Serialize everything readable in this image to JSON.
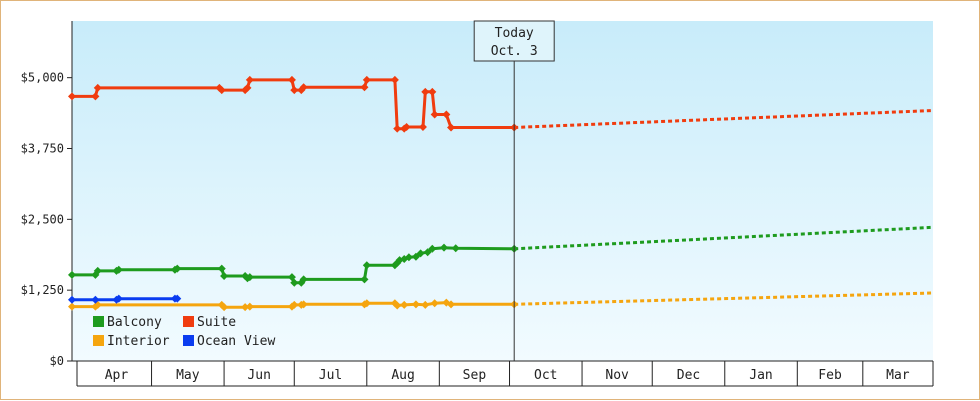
{
  "chart_data": {
    "type": "line",
    "title": "",
    "xlabel": "",
    "ylabel": "",
    "ylim": [
      0,
      6000
    ],
    "xlim": [
      "2024-03-28",
      "2025-03-31"
    ],
    "y_ticks": [
      {
        "value": 0,
        "label": "$0"
      },
      {
        "value": 1250,
        "label": "$1,250"
      },
      {
        "value": 2500,
        "label": "$2,500"
      },
      {
        "value": 3750,
        "label": "$3,750"
      },
      {
        "value": 5000,
        "label": "$5,000"
      }
    ],
    "x_months": [
      {
        "label": "Apr",
        "start": "2024-04-01",
        "end": "2024-05-01"
      },
      {
        "label": "May",
        "start": "2024-05-01",
        "end": "2024-06-01"
      },
      {
        "label": "Jun",
        "start": "2024-06-01",
        "end": "2024-07-01"
      },
      {
        "label": "Jul",
        "start": "2024-07-01",
        "end": "2024-08-01"
      },
      {
        "label": "Aug",
        "start": "2024-08-01",
        "end": "2024-09-01"
      },
      {
        "label": "Sep",
        "start": "2024-09-01",
        "end": "2024-10-01"
      },
      {
        "label": "Oct",
        "start": "2024-10-01",
        "end": "2024-11-01"
      },
      {
        "label": "Nov",
        "start": "2024-11-01",
        "end": "2024-12-01"
      },
      {
        "label": "Dec",
        "start": "2024-12-01",
        "end": "2025-01-01"
      },
      {
        "label": "Jan",
        "start": "2025-01-01",
        "end": "2025-02-01"
      },
      {
        "label": "Feb",
        "start": "2025-02-01",
        "end": "2025-03-01"
      },
      {
        "label": "Mar",
        "start": "2025-03-01",
        "end": "2025-04-01"
      }
    ],
    "today": {
      "label_line1": "Today",
      "label_line2": "Oct. 3",
      "date": "2024-10-03"
    },
    "legend": {
      "placement": "bottom-left",
      "entries": [
        "Balcony",
        "Suite",
        "Interior",
        "Ocean View"
      ]
    },
    "grid": false,
    "series": [
      {
        "name": "Suite",
        "color": "#f03c0f",
        "points": [
          [
            "2024-03-28",
            4670
          ],
          [
            "2024-04-07",
            4670
          ],
          [
            "2024-04-08",
            4820
          ],
          [
            "2024-05-30",
            4820
          ],
          [
            "2024-05-31",
            4780
          ],
          [
            "2024-06-10",
            4780
          ],
          [
            "2024-06-11",
            4820
          ],
          [
            "2024-06-12",
            4960
          ],
          [
            "2024-06-30",
            4960
          ],
          [
            "2024-07-01",
            4780
          ],
          [
            "2024-07-04",
            4780
          ],
          [
            "2024-07-05",
            4830
          ],
          [
            "2024-07-31",
            4830
          ],
          [
            "2024-08-01",
            4960
          ],
          [
            "2024-08-13",
            4960
          ],
          [
            "2024-08-14",
            4100
          ],
          [
            "2024-08-17",
            4100
          ],
          [
            "2024-08-18",
            4130
          ],
          [
            "2024-08-25",
            4130
          ],
          [
            "2024-08-26",
            4750
          ],
          [
            "2024-08-29",
            4750
          ],
          [
            "2024-08-30",
            4350
          ],
          [
            "2024-09-04",
            4350
          ],
          [
            "2024-09-06",
            4120
          ],
          [
            "2024-10-03",
            4120
          ]
        ],
        "forecast": [
          [
            "2024-10-03",
            4120
          ],
          [
            "2025-03-31",
            4420
          ]
        ]
      },
      {
        "name": "Balcony",
        "color": "#1e9b1e",
        "points": [
          [
            "2024-03-28",
            1520
          ],
          [
            "2024-04-07",
            1520
          ],
          [
            "2024-04-08",
            1590
          ],
          [
            "2024-04-16",
            1590
          ],
          [
            "2024-04-17",
            1610
          ],
          [
            "2024-05-11",
            1610
          ],
          [
            "2024-05-12",
            1630
          ],
          [
            "2024-05-31",
            1630
          ],
          [
            "2024-06-01",
            1500
          ],
          [
            "2024-06-10",
            1500
          ],
          [
            "2024-06-11",
            1460
          ],
          [
            "2024-06-12",
            1480
          ],
          [
            "2024-06-30",
            1480
          ],
          [
            "2024-07-01",
            1380
          ],
          [
            "2024-07-04",
            1380
          ],
          [
            "2024-07-05",
            1440
          ],
          [
            "2024-07-31",
            1440
          ],
          [
            "2024-08-01",
            1690
          ],
          [
            "2024-08-13",
            1690
          ],
          [
            "2024-08-14",
            1730
          ],
          [
            "2024-08-15",
            1780
          ],
          [
            "2024-08-17",
            1800
          ],
          [
            "2024-08-19",
            1830
          ],
          [
            "2024-08-22",
            1840
          ],
          [
            "2024-08-24",
            1900
          ],
          [
            "2024-08-27",
            1920
          ],
          [
            "2024-08-29",
            1980
          ],
          [
            "2024-09-03",
            2000
          ],
          [
            "2024-09-08",
            1990
          ],
          [
            "2024-10-03",
            1980
          ]
        ],
        "forecast": [
          [
            "2024-10-03",
            1980
          ],
          [
            "2025-03-31",
            2360
          ]
        ]
      },
      {
        "name": "Interior",
        "color": "#f5a50f",
        "points": [
          [
            "2024-03-28",
            960
          ],
          [
            "2024-04-07",
            960
          ],
          [
            "2024-04-08",
            990
          ],
          [
            "2024-05-31",
            990
          ],
          [
            "2024-06-01",
            950
          ],
          [
            "2024-06-10",
            950
          ],
          [
            "2024-06-12",
            960
          ],
          [
            "2024-06-30",
            960
          ],
          [
            "2024-07-01",
            990
          ],
          [
            "2024-07-04",
            990
          ],
          [
            "2024-07-05",
            1000
          ],
          [
            "2024-07-31",
            1000
          ],
          [
            "2024-08-01",
            1020
          ],
          [
            "2024-08-13",
            1020
          ],
          [
            "2024-08-14",
            980
          ],
          [
            "2024-08-17",
            990
          ],
          [
            "2024-08-22",
            1000
          ],
          [
            "2024-08-26",
            990
          ],
          [
            "2024-08-30",
            1020
          ],
          [
            "2024-09-04",
            1030
          ],
          [
            "2024-09-06",
            1000
          ],
          [
            "2024-10-03",
            1000
          ]
        ],
        "forecast": [
          [
            "2024-10-03",
            1000
          ],
          [
            "2025-03-31",
            1200
          ]
        ]
      },
      {
        "name": "Ocean View",
        "color": "#0a3cf0",
        "points": [
          [
            "2024-03-28",
            1080
          ],
          [
            "2024-04-07",
            1080
          ],
          [
            "2024-04-16",
            1080
          ],
          [
            "2024-04-17",
            1100
          ],
          [
            "2024-05-11",
            1100
          ],
          [
            "2024-05-12",
            1100
          ]
        ],
        "forecast": []
      }
    ]
  }
}
